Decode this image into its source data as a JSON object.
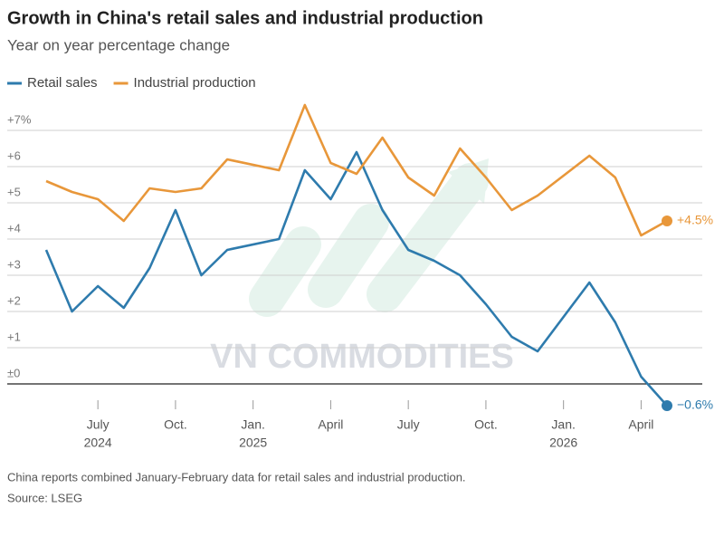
{
  "chart_data": {
    "type": "line",
    "title": "Growth in China's retail sales and industrial production",
    "subtitle": "Year on year percentage change",
    "footnote": "China reports combined January-February data for retail sales and industrial production.",
    "source": "Source: LSEG",
    "watermark": "VN COMMODITIES",
    "x": [
      "2024-05",
      "2024-06",
      "2024-07",
      "2024-08",
      "2024-09",
      "2024-10",
      "2024-11",
      "2024-12",
      "2025-02",
      "2025-03",
      "2025-04",
      "2025-05",
      "2025-06",
      "2025-07",
      "2025-08",
      "2025-09",
      "2025-10",
      "2025-11",
      "2025-12",
      "2026-02",
      "2026-03",
      "2026-04",
      "2026-05"
    ],
    "xlim": [
      "2024-05",
      "2026-05"
    ],
    "xticks": [
      {
        "value": "2024-07",
        "label": "July"
      },
      {
        "value": "2024-10",
        "label": "Oct."
      },
      {
        "value": "2025-01",
        "label": "Jan."
      },
      {
        "value": "2025-04",
        "label": "April"
      },
      {
        "value": "2025-07",
        "label": "July"
      },
      {
        "value": "2025-10",
        "label": "Oct."
      },
      {
        "value": "2026-01",
        "label": "Jan."
      },
      {
        "value": "2026-04",
        "label": "April"
      }
    ],
    "year_labels": [
      {
        "value": "2024-07",
        "label": "2024"
      },
      {
        "value": "2025-01",
        "label": "2025"
      },
      {
        "value": "2026-01",
        "label": "2026"
      }
    ],
    "ylim": [
      -0.8,
      7.8
    ],
    "yticks": [
      {
        "value": 0,
        "label": "±0"
      },
      {
        "value": 1,
        "label": "+1"
      },
      {
        "value": 2,
        "label": "+2"
      },
      {
        "value": 3,
        "label": "+3"
      },
      {
        "value": 4,
        "label": "+4"
      },
      {
        "value": 5,
        "label": "+5"
      },
      {
        "value": 6,
        "label": "+6"
      },
      {
        "value": 7,
        "label": "+7%"
      }
    ],
    "grid": true,
    "legend": "top-left",
    "series": [
      {
        "name": "Retail sales",
        "color": "#2e7bad",
        "values": [
          3.7,
          2.0,
          2.7,
          2.1,
          3.2,
          4.8,
          3.0,
          3.7,
          4.0,
          5.9,
          5.1,
          6.4,
          4.8,
          3.7,
          3.4,
          3.0,
          2.2,
          1.3,
          0.9,
          2.8,
          1.7,
          0.2,
          -0.6
        ],
        "value_labels": [
          null,
          null,
          null,
          null,
          null,
          null,
          null,
          null,
          null,
          null,
          null,
          null,
          null,
          null,
          null,
          null,
          null,
          null,
          null,
          null,
          null,
          null,
          "−0.6%"
        ]
      },
      {
        "name": "Industrial production",
        "color": "#e8973a",
        "values": [
          5.6,
          5.3,
          5.1,
          4.5,
          5.4,
          5.3,
          5.4,
          6.2,
          5.9,
          7.7,
          6.1,
          5.8,
          6.8,
          5.7,
          5.2,
          6.5,
          5.7,
          4.8,
          5.2,
          6.3,
          5.7,
          4.1,
          4.5
        ],
        "value_labels": [
          null,
          null,
          null,
          null,
          null,
          null,
          null,
          null,
          null,
          null,
          null,
          null,
          null,
          null,
          null,
          null,
          null,
          null,
          null,
          null,
          null,
          null,
          "+4.5%"
        ]
      }
    ]
  }
}
